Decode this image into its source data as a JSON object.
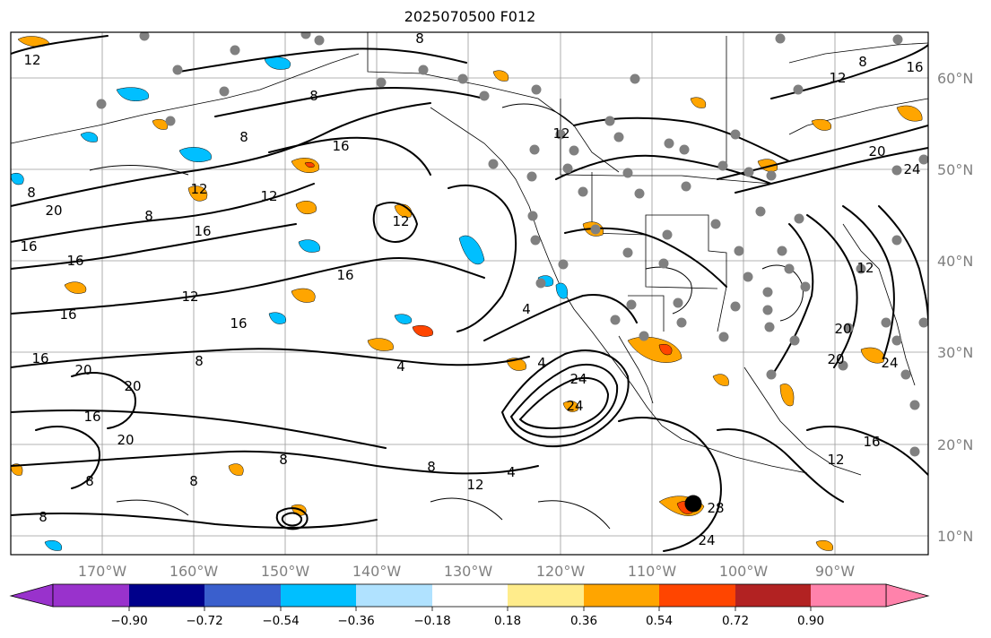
{
  "title": "2025070500 F012",
  "lat_labels": [
    "60°N",
    "50°N",
    "40°N",
    "30°N",
    "20°N",
    "10°N"
  ],
  "lon_labels": [
    "170°W",
    "160°W",
    "150°W",
    "140°W",
    "130°W",
    "120°W",
    "110°W",
    "100°W",
    "90°W"
  ],
  "colorbar": {
    "colors": [
      "#9932cc",
      "#00008b",
      "#3a5fcd",
      "#00bfff",
      "#b0e2ff",
      "#ffffff",
      "#ffec8b",
      "#ffa500",
      "#ff4500",
      "#b22222",
      "#ff82ab"
    ],
    "tick_labels": [
      "−0.90",
      "−0.72",
      "−0.54",
      "−0.36",
      "−0.18",
      "0.18",
      "0.36",
      "0.54",
      "0.72",
      "0.90"
    ]
  },
  "contour_labels": [
    "8",
    "12",
    "16",
    "20",
    "24",
    "4",
    "28"
  ],
  "station_color": "#808080",
  "storm_marker_color": "#000000"
}
